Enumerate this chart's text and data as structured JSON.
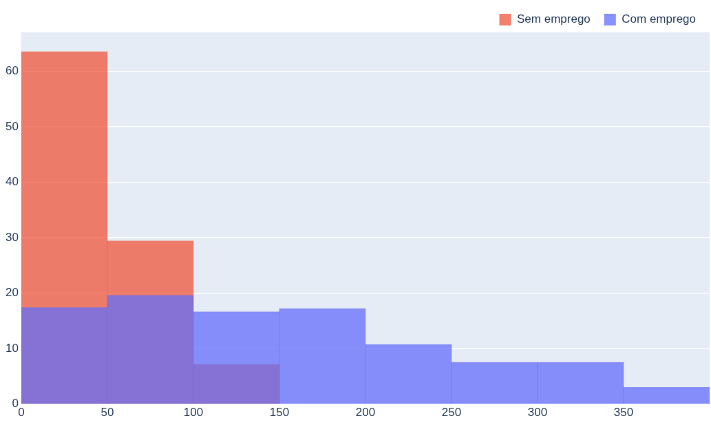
{
  "chart_data": {
    "type": "histogram",
    "bins": [
      0,
      50,
      100,
      150,
      200,
      250,
      300,
      350,
      400
    ],
    "series": [
      {
        "name": "Sem emprego",
        "color": "#ef553b",
        "values": [
          63.5,
          29.4,
          7.1,
          null,
          null,
          null,
          null,
          null
        ]
      },
      {
        "name": "Com emprego",
        "color": "#636efa",
        "values": [
          17.4,
          19.6,
          16.6,
          17.2,
          10.7,
          7.5,
          7.5,
          3.0
        ]
      }
    ],
    "xlim": [
      0,
      400
    ],
    "xticks": [
      0,
      50,
      100,
      150,
      200,
      250,
      300,
      350
    ],
    "ylim": [
      0,
      67
    ],
    "yticks": [
      0,
      10,
      20,
      30,
      40,
      50,
      60
    ],
    "grid": "y",
    "legend": "top right"
  }
}
